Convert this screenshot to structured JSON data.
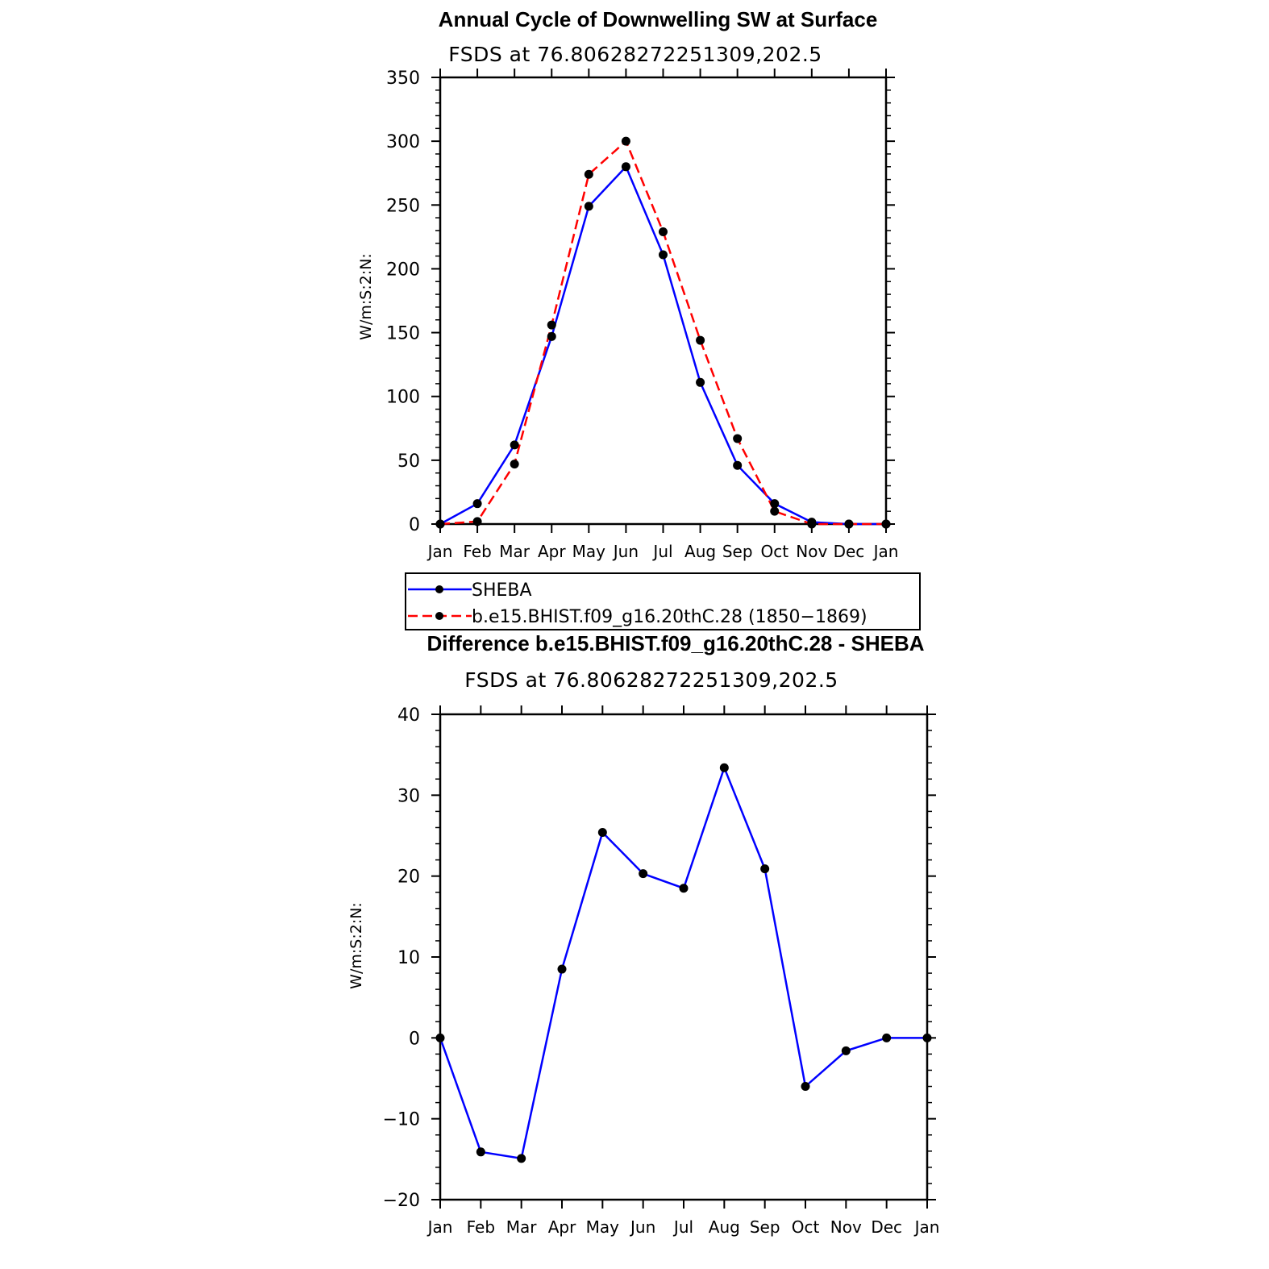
{
  "chart_data": [
    {
      "type": "line",
      "title": "Annual Cycle of Downwelling SW at Surface",
      "subtitle": "FSDS at 76.80628272251309,202.5",
      "ylabel": "W/m:S:2:N:",
      "xlabel": "",
      "categories": [
        "Jan",
        "Feb",
        "Mar",
        "Apr",
        "May",
        "Jun",
        "Jul",
        "Aug",
        "Sep",
        "Oct",
        "Nov",
        "Dec",
        "Jan"
      ],
      "ylim": [
        0,
        350
      ],
      "yticks": [
        0,
        50,
        100,
        150,
        200,
        250,
        300,
        350
      ],
      "series": [
        {
          "name": "SHEBA",
          "color": "#0000ff",
          "dash": "solid",
          "values": [
            0,
            16,
            62,
            147,
            249,
            280,
            211,
            111,
            46,
            16,
            1.5,
            0,
            0
          ]
        },
        {
          "name": "b.e15.BHIST.f09_g16.20thC.28 (1850−1869)",
          "color": "#ff0000",
          "dash": "dashed",
          "values": [
            0,
            2,
            47,
            156,
            274,
            300,
            229,
            144,
            67,
            10,
            0,
            0,
            0
          ]
        }
      ],
      "legend": "below"
    },
    {
      "type": "line",
      "title": "Difference b.e15.BHIST.f09_g16.20thC.28 - SHEBA",
      "subtitle": "FSDS at 76.80628272251309,202.5",
      "ylabel": "W/m:S:2:N:",
      "xlabel": "",
      "categories": [
        "Jan",
        "Feb",
        "Mar",
        "Apr",
        "May",
        "Jun",
        "Jul",
        "Aug",
        "Sep",
        "Oct",
        "Nov",
        "Dec",
        "Jan"
      ],
      "ylim": [
        -20,
        40
      ],
      "yticks": [
        -20,
        -10,
        0,
        10,
        20,
        30,
        40
      ],
      "series": [
        {
          "name": "Difference",
          "color": "#0000ff",
          "dash": "solid",
          "values": [
            0,
            -14.1,
            -14.9,
            8.5,
            25.4,
            20.3,
            18.5,
            33.4,
            20.9,
            -6.0,
            -1.6,
            0,
            0
          ]
        }
      ]
    }
  ]
}
